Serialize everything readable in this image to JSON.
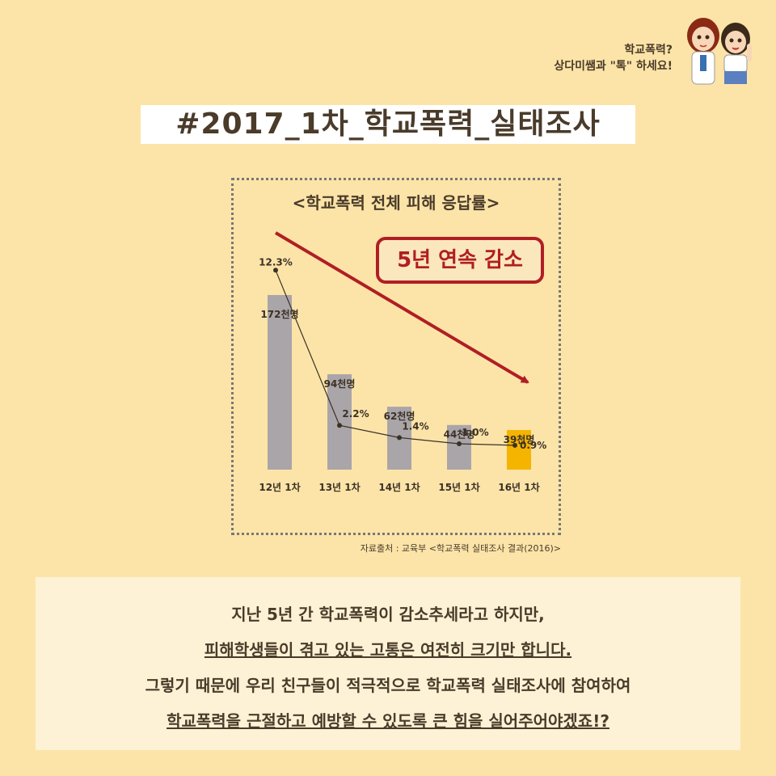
{
  "brand": {
    "line1": "학교폭력?",
    "line2_prefix": "상다미쌤과 ",
    "line2_quote": "\"톡\"",
    "line2_suffix": " 하세요!"
  },
  "title": "#2017_1차_학교폭력_실태조사",
  "badge": "5년 연속 감소",
  "source": "자료출처 : 교육부 <학교폭력 실태조사 결과(2016)>",
  "colors": {
    "bar": "#aaa5a9",
    "highlight_bar": "#f5b400",
    "trend_arrow": "#b01e24",
    "background": "#fce4a8"
  },
  "chart_data": {
    "type": "bar",
    "title": "<학교폭력 전체 피해 응답률>",
    "categories": [
      "12년 1차",
      "13년 1차",
      "14년 1차",
      "15년 1차",
      "16년 1차"
    ],
    "series": [
      {
        "values": [
          172,
          94,
          62,
          44,
          39
        ],
        "labels": [
          "172천명",
          "94천명",
          "62천명",
          "44천명",
          "39천명"
        ],
        "unit": "천명"
      },
      {
        "type": "line",
        "values": [
          12.3,
          2.2,
          1.4,
          1.0,
          0.9
        ],
        "labels": [
          "12.3%",
          "2.2%",
          "1.4%",
          "1.0%",
          "0.9%"
        ],
        "unit": "%"
      }
    ],
    "highlight_index": 4,
    "grid": false,
    "legend": "none"
  },
  "message": {
    "line1": "지난 5년 간 학교폭력이 감소추세라고 하지만,",
    "line2": "피해학생들이 겪고 있는 고통은 여전히 크기만 합니다.",
    "line3": "그렇기 때문에 우리 친구들이 적극적으로 학교폭력 실태조사에 참여하여",
    "line4": "학교폭력을 근절하고 예방할 수 있도록 큰 힘을 실어주어야겠죠!?"
  }
}
